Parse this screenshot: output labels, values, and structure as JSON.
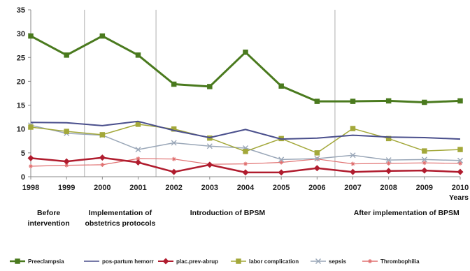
{
  "chart_data": {
    "type": "line",
    "x": [
      "1998",
      "1999",
      "2000",
      "2001",
      "2002",
      "2003",
      "2004",
      "2005",
      "2006",
      "2007",
      "2008",
      "2009",
      "2010"
    ],
    "xlabel": "Years",
    "ylim": [
      0,
      35
    ],
    "yticks": [
      0,
      5,
      10,
      15,
      20,
      25,
      30,
      35
    ],
    "grid": false,
    "legend_position": "bottom",
    "period_dividers_after": [
      "1999",
      "2001",
      "2006"
    ],
    "periods": [
      {
        "label_line1": "Before",
        "label_line2": "intervention",
        "center": "1998.5"
      },
      {
        "label_line1": "Implementation of",
        "label_line2": "obstetrics protocols",
        "center": "2000.5"
      },
      {
        "label_line1": "Introduction of BPSM",
        "label_line2": "",
        "center": "2003.5"
      },
      {
        "label_line1": "After implementation of BPSM",
        "label_line2": "",
        "center": "2008.5"
      }
    ],
    "series": [
      {
        "name": "Preeclampsia",
        "color": "#4a7a1e",
        "marker": "square",
        "width": 3,
        "values": [
          29.5,
          25.5,
          29.5,
          25.5,
          19.4,
          18.9,
          26.1,
          19.0,
          15.8,
          15.8,
          15.9,
          15.6,
          15.9
        ]
      },
      {
        "name": "pos-partum hemorr",
        "color": "#4a4f8c",
        "marker": "none",
        "width": 2,
        "values": [
          11.4,
          11.3,
          10.7,
          11.6,
          9.7,
          8.2,
          9.9,
          7.9,
          8.1,
          8.7,
          8.3,
          8.2,
          7.9
        ]
      },
      {
        "name": "plac.prev-abrup",
        "color": "#b01c2e",
        "marker": "diamond",
        "width": 2.5,
        "values": [
          3.9,
          3.2,
          4.0,
          3.0,
          1.0,
          2.5,
          0.9,
          0.9,
          1.8,
          1.0,
          1.2,
          1.3,
          1.0
        ]
      },
      {
        "name": "labor complication",
        "color": "#a3a83a",
        "marker": "square",
        "width": 1.5,
        "values": [
          10.4,
          9.5,
          8.8,
          11.0,
          10.0,
          8.1,
          5.3,
          8.0,
          5.0,
          10.1,
          8.0,
          5.4,
          5.7
        ]
      },
      {
        "name": "sepsis",
        "color": "#9aa7b8",
        "marker": "x",
        "width": 1.5,
        "values": [
          10.8,
          9.1,
          8.7,
          5.7,
          7.1,
          6.4,
          6.0,
          3.6,
          3.8,
          4.5,
          3.5,
          3.6,
          3.4
        ]
      },
      {
        "name": "Thrombophilia",
        "color": "#e07070",
        "marker": "star",
        "width": 1.2,
        "values": [
          2.2,
          2.4,
          2.5,
          3.8,
          3.7,
          2.6,
          2.7,
          3.0,
          3.7,
          2.7,
          2.8,
          2.9,
          2.8
        ]
      }
    ]
  }
}
